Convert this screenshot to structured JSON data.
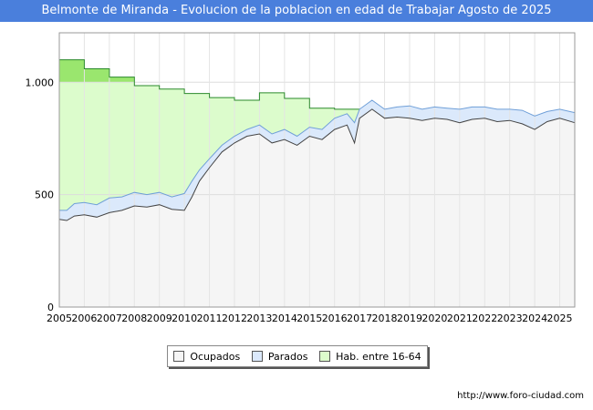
{
  "title": "Belmonte de Miranda - Evolucion de la poblacion en edad de Trabajar Agosto de 2025",
  "source": "http://www.foro-ciudad.com",
  "colors": {
    "title_bg": "#4a7fdc",
    "ocupados_fill": "#f5f5f5",
    "ocupados_line": "#444444",
    "parados_fill": "#dbe9fb",
    "parados_line": "#6f9fd8",
    "hab_fill": "#dcfccc",
    "hab_line": "#2a8a2a",
    "hab_highlight": "#9ae66e"
  },
  "legend": [
    {
      "label": "Ocupados",
      "color": "#f5f5f5"
    },
    {
      "label": "Parados",
      "color": "#dbe9fb"
    },
    {
      "label": "Hab. entre 16-64",
      "color": "#dcfccc"
    }
  ],
  "chart_data": {
    "type": "area",
    "x_ticks": [
      "2005",
      "2006",
      "2007",
      "2008",
      "2009",
      "2010",
      "2011",
      "2012",
      "2013",
      "2014",
      "2015",
      "2016",
      "2017",
      "2018",
      "2019",
      "2020",
      "2021",
      "2022",
      "2023",
      "2024",
      "2025"
    ],
    "y_ticks": [
      0,
      500,
      1000
    ],
    "y_tick_labels": [
      "0",
      "500",
      "1.000"
    ],
    "xlim": [
      2005,
      2025.6
    ],
    "ylim": [
      0,
      1220
    ],
    "grid": true,
    "legend_position": "bottom",
    "series": [
      {
        "name": "Hab. entre 16-64",
        "style": "step",
        "x": [
          2005,
          2006,
          2007,
          2008,
          2009,
          2010,
          2011,
          2012,
          2013,
          2014,
          2015,
          2016,
          2017
        ],
        "values": [
          1100,
          1060,
          1023,
          985,
          970,
          950,
          932,
          920,
          953,
          928,
          885,
          880,
          880
        ]
      },
      {
        "name": "Parados",
        "x": [
          2005,
          2005.3,
          2005.6,
          2006,
          2006.5,
          2007,
          2007.5,
          2008,
          2008.5,
          2009,
          2009.5,
          2010,
          2010.3,
          2010.6,
          2011,
          2011.5,
          2012,
          2012.5,
          2013,
          2013.5,
          2014,
          2014.5,
          2015,
          2015.5,
          2016,
          2016.5,
          2016.8,
          2017,
          2017.5,
          2018,
          2018.5,
          2019,
          2019.5,
          2020,
          2020.5,
          2021,
          2021.5,
          2022,
          2022.5,
          2023,
          2023.5,
          2024,
          2024.5,
          2025,
          2025.6
        ],
        "values": [
          430,
          430,
          460,
          465,
          455,
          485,
          490,
          510,
          500,
          510,
          490,
          505,
          560,
          610,
          660,
          720,
          760,
          790,
          810,
          770,
          790,
          760,
          800,
          790,
          840,
          860,
          820,
          880,
          920,
          880,
          890,
          895,
          880,
          890,
          885,
          880,
          890,
          890,
          880,
          880,
          875,
          850,
          870,
          880,
          865
        ]
      },
      {
        "name": "Ocupados",
        "x": [
          2005,
          2005.3,
          2005.6,
          2006,
          2006.5,
          2007,
          2007.5,
          2008,
          2008.5,
          2009,
          2009.5,
          2010,
          2010.3,
          2010.6,
          2011,
          2011.5,
          2012,
          2012.5,
          2013,
          2013.5,
          2014,
          2014.5,
          2015,
          2015.5,
          2016,
          2016.5,
          2016.8,
          2017,
          2017.5,
          2018,
          2018.5,
          2019,
          2019.5,
          2020,
          2020.5,
          2021,
          2021.5,
          2022,
          2022.5,
          2023,
          2023.5,
          2024,
          2024.5,
          2025,
          2025.6
        ],
        "values": [
          390,
          385,
          405,
          410,
          400,
          420,
          430,
          450,
          445,
          455,
          435,
          430,
          490,
          560,
          620,
          690,
          730,
          760,
          770,
          730,
          745,
          720,
          760,
          745,
          790,
          810,
          730,
          840,
          880,
          840,
          845,
          840,
          830,
          840,
          835,
          820,
          835,
          840,
          825,
          830,
          815,
          790,
          825,
          840,
          820
        ]
      }
    ]
  }
}
